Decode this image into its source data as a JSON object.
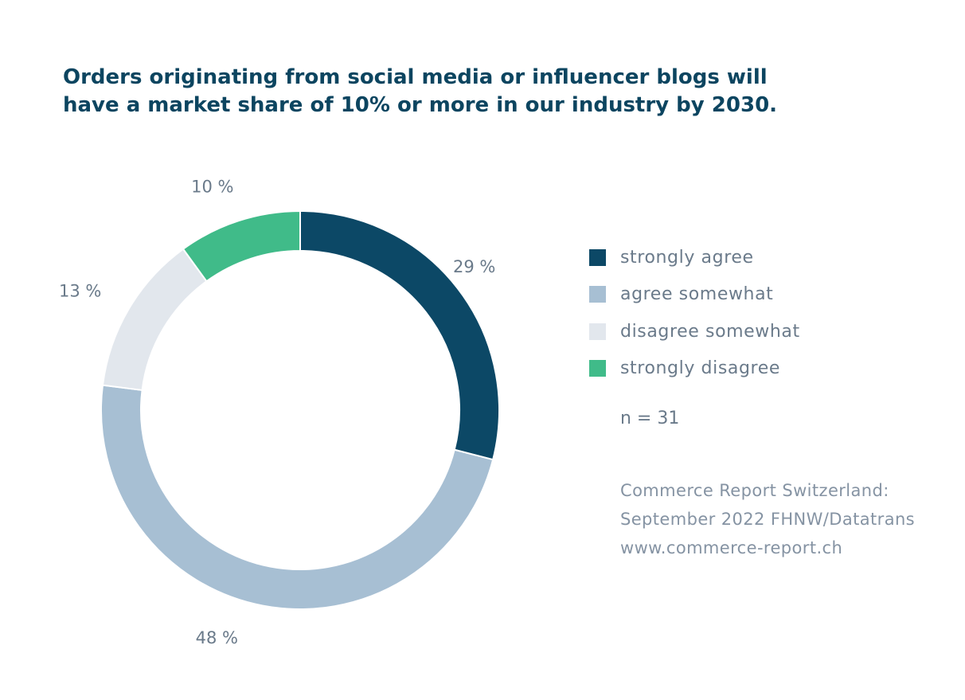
{
  "title_lines": [
    "Orders originating from social media or influencer blogs will",
    "have a market share of 10% or more in our industry by 2030."
  ],
  "chart_data": {
    "type": "pie",
    "categories": [
      "strongly agree",
      "agree somewhat",
      "disagree somewhat",
      "strongly disagree"
    ],
    "values": [
      29,
      48,
      13,
      10
    ],
    "labels": [
      "29 %",
      "48 %",
      "13 %",
      "10 %"
    ],
    "colors": [
      "#0c4866",
      "#a7bfd3",
      "#e2e7ed",
      "#40bb89"
    ],
    "legend": "right"
  },
  "legend_items": [
    {
      "label": "strongly agree",
      "color": "#0c4866"
    },
    {
      "label": "agree somewhat",
      "color": "#a7bfd3"
    },
    {
      "label": "disagree somewhat",
      "color": "#e2e7ed"
    },
    {
      "label": "strongly disagree",
      "color": "#40bb89"
    }
  ],
  "n_text": "n = 31",
  "source_lines": [
    "Commerce Report Switzerland:",
    "September 2022 FHNW/Datatrans",
    "www.commerce-report.ch"
  ]
}
